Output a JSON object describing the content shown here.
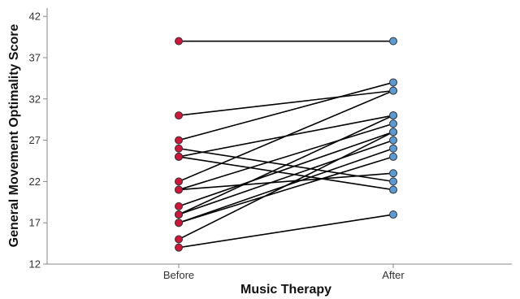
{
  "chart_data": {
    "type": "line",
    "xlabel": "Music Therapy",
    "ylabel": "General Movement Optimality Score",
    "categories": [
      "Before",
      "After"
    ],
    "ylim": [
      12,
      43
    ],
    "yticks": [
      12,
      17,
      22,
      27,
      32,
      37,
      42
    ],
    "grid": false,
    "colors": {
      "before": "#d1163c",
      "after": "#5b9bd5",
      "line": "#000000",
      "axis": "#888888"
    },
    "pairs": [
      {
        "before": 39,
        "after": 39
      },
      {
        "before": 30,
        "after": 33
      },
      {
        "before": 27,
        "after": 34
      },
      {
        "before": 26,
        "after": 22
      },
      {
        "before": 25,
        "after": 21
      },
      {
        "before": 25,
        "after": 30
      },
      {
        "before": 22,
        "after": 33
      },
      {
        "before": 21,
        "after": 23
      },
      {
        "before": 21,
        "after": 29
      },
      {
        "before": 19,
        "after": 28
      },
      {
        "before": 18,
        "after": 30
      },
      {
        "before": 18,
        "after": 27
      },
      {
        "before": 17,
        "after": 26
      },
      {
        "before": 17,
        "after": 25
      },
      {
        "before": 15,
        "after": 28
      },
      {
        "before": 14,
        "after": 18
      }
    ]
  }
}
